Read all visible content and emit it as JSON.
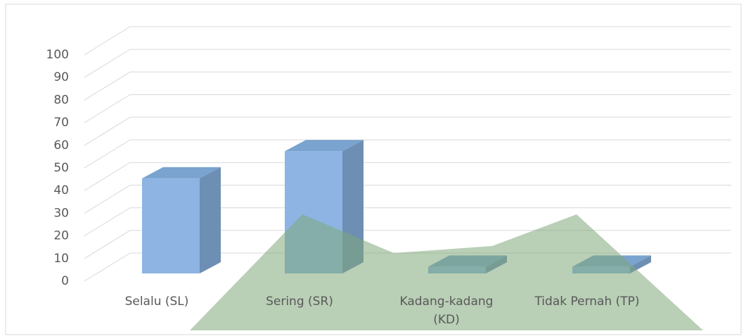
{
  "chart_data": {
    "type": "bar3d",
    "categories": [
      "Selalu (SL)",
      "Sering (SR)",
      "Kadang-kadang (KD)",
      "Tidak Pernah (TP)"
    ],
    "values": [
      42,
      54,
      3,
      3
    ],
    "color": "#8db4e2",
    "ylim": [
      0,
      100
    ],
    "yticks": [
      0,
      10,
      20,
      30,
      40,
      50,
      60,
      70,
      80,
      90,
      100
    ],
    "grid": true
  }
}
